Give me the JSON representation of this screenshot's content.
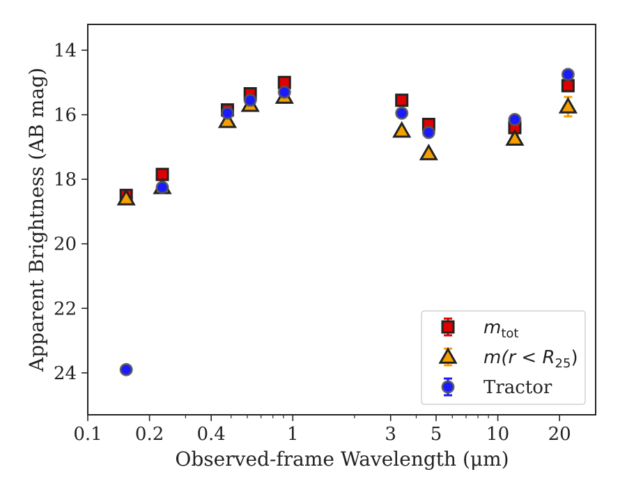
{
  "chart_data": {
    "type": "scatter",
    "xlabel": "Observed-frame Wavelength (μm)",
    "ylabel": "Apparent Brightness (AB mag)",
    "xscale": "log",
    "xlim": [
      0.1,
      30
    ],
    "ylim": [
      25.3,
      13.2
    ],
    "y_inverted": true,
    "x_ticks": [
      0.1,
      0.2,
      0.4,
      1,
      3,
      5,
      10,
      20
    ],
    "x_tick_labels": [
      "0.1",
      "0.2",
      "0.4",
      "1",
      "3",
      "5",
      "10",
      "20"
    ],
    "y_ticks": [
      14,
      16,
      18,
      20,
      22,
      24
    ],
    "y_tick_labels": [
      "14",
      "16",
      "18",
      "20",
      "22",
      "24"
    ],
    "legend_position": "lower-right",
    "series": [
      {
        "name": "m_tot",
        "marker": "square",
        "color": "#e00000",
        "x": [
          0.154,
          0.231,
          0.48,
          0.62,
          0.91,
          3.4,
          4.6,
          12.1,
          22.0
        ],
        "y": [
          18.5,
          17.85,
          15.85,
          15.35,
          15.0,
          15.55,
          16.3,
          16.4,
          15.1
        ],
        "yerr": [
          0.05,
          0.05,
          0.05,
          0.05,
          0.05,
          0.05,
          0.05,
          0.1,
          0.15
        ]
      },
      {
        "name": "m(r < R25)",
        "marker": "triangle",
        "color": "#f5a000",
        "x": [
          0.154,
          0.231,
          0.48,
          0.62,
          0.91,
          3.4,
          4.6,
          12.1,
          22.0
        ],
        "y": [
          18.6,
          18.25,
          16.2,
          15.7,
          15.45,
          16.5,
          17.2,
          16.75,
          15.75
        ],
        "yerr": [
          0.05,
          0.05,
          0.05,
          0.05,
          0.05,
          0.05,
          0.05,
          0.1,
          0.3
        ]
      },
      {
        "name": "Tractor",
        "marker": "circle",
        "color": "#1a1aff",
        "x": [
          0.154,
          0.231,
          0.48,
          0.62,
          0.91,
          3.4,
          4.6,
          12.1,
          22.0
        ],
        "y": [
          23.9,
          18.25,
          15.95,
          15.55,
          15.3,
          15.95,
          16.55,
          16.15,
          14.75
        ],
        "yerr": [
          0.05,
          0.05,
          0.05,
          0.05,
          0.05,
          0.05,
          0.05,
          0.05,
          0.05
        ]
      }
    ],
    "legend": [
      {
        "base": "m",
        "sub": "tot",
        "suffix": ""
      },
      {
        "base": "m(r < R",
        "sub": "25",
        "suffix": ")"
      },
      {
        "text": "Tractor"
      }
    ]
  }
}
